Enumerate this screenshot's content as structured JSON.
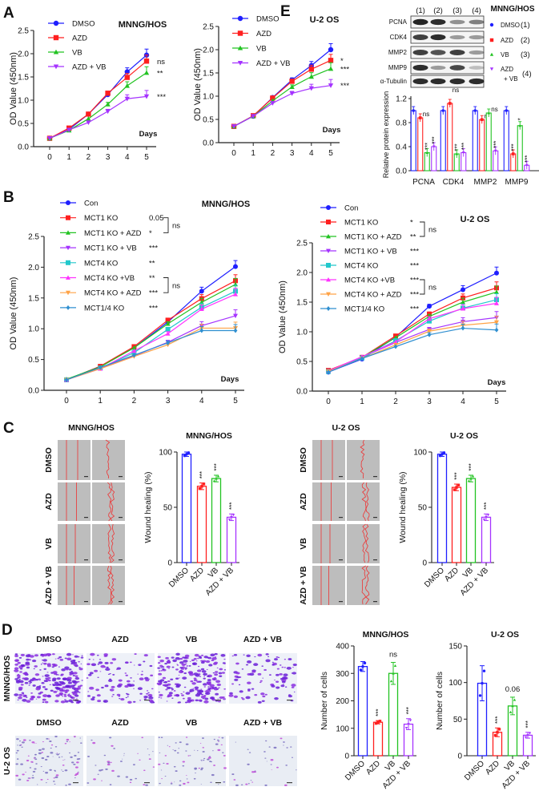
{
  "panels": [
    "A",
    "B",
    "C",
    "D",
    "E"
  ],
  "colors": {
    "blue": "#1f1fff",
    "red": "#ff1f1f",
    "green": "#22c322",
    "purple": "#a533ff",
    "cyan": "#22c8cc",
    "magenta": "#ff33ff",
    "orange": "#ffa347",
    "steel": "#2f8fd0",
    "axis": "#222222"
  },
  "chart_data": [
    {
      "id": "A1",
      "type": "line",
      "title": "MNNG/HOS",
      "xlabel": "Days",
      "ylabel": "OD Value (450nm)",
      "x": [
        0,
        1,
        2,
        3,
        4,
        5
      ],
      "xticks": [
        "0",
        "1",
        "2",
        "3",
        "4",
        "5"
      ],
      "ylim": [
        0,
        2.5
      ],
      "yticks": [
        "0.0",
        "0.5",
        "1.0",
        "1.5",
        "2.0",
        "2.5"
      ],
      "series": [
        {
          "name": "DMSO",
          "color": "#1f1fff",
          "marker": "circle",
          "values": [
            0.18,
            0.37,
            0.7,
            1.12,
            1.61,
            1.97
          ],
          "sig": ""
        },
        {
          "name": "AZD",
          "color": "#ff1f1f",
          "marker": "square",
          "values": [
            0.18,
            0.4,
            0.7,
            1.15,
            1.49,
            1.84
          ],
          "sig": "ns"
        },
        {
          "name": "VB",
          "color": "#22c322",
          "marker": "triangle",
          "values": [
            0.18,
            0.35,
            0.6,
            0.91,
            1.31,
            1.59
          ],
          "sig": "**"
        },
        {
          "name": "AZD + VB",
          "color": "#a533ff",
          "marker": "triangle-down",
          "values": [
            0.18,
            0.36,
            0.52,
            0.76,
            1.03,
            1.08
          ],
          "sig": "***"
        }
      ]
    },
    {
      "id": "A2",
      "type": "line",
      "title": "U-2 OS",
      "xlabel": "Days",
      "ylabel": "OD Value (450nm)",
      "x": [
        0,
        1,
        2,
        3,
        4,
        5
      ],
      "xticks": [
        "0",
        "1",
        "2",
        "3",
        "4",
        "5"
      ],
      "ylim": [
        0,
        2.5
      ],
      "yticks": [
        "0.0",
        "0.5",
        "1.0",
        "1.5",
        "2.0",
        "2.5"
      ],
      "series": [
        {
          "name": "DMSO",
          "color": "#1f1fff",
          "marker": "circle",
          "values": [
            0.35,
            0.57,
            0.97,
            1.35,
            1.66,
            2.0
          ],
          "sig": ""
        },
        {
          "name": "AZD",
          "color": "#ff1f1f",
          "marker": "square",
          "values": [
            0.35,
            0.58,
            0.96,
            1.32,
            1.58,
            1.77
          ],
          "sig": "*"
        },
        {
          "name": "VB",
          "color": "#22c322",
          "marker": "triangle",
          "values": [
            0.35,
            0.57,
            0.9,
            1.2,
            1.42,
            1.59
          ],
          "sig": "***"
        },
        {
          "name": "AZD + VB",
          "color": "#a533ff",
          "marker": "triangle-down",
          "values": [
            0.35,
            0.57,
            0.85,
            1.06,
            1.17,
            1.23
          ],
          "sig": "***"
        }
      ]
    },
    {
      "id": "B1",
      "type": "line",
      "title": "MNNG/HOS",
      "xlabel": "Days",
      "ylabel": "OD Value (450nm)",
      "x": [
        0,
        1,
        2,
        3,
        4,
        5
      ],
      "xticks": [
        "0",
        "1",
        "2",
        "3",
        "4",
        "5"
      ],
      "ylim": [
        0,
        2.5
      ],
      "yticks": [
        "0.0",
        "0.5",
        "1.0",
        "1.5",
        "2.0",
        "2.5"
      ],
      "series": [
        {
          "name": "Con",
          "color": "#1f1fff",
          "marker": "circle",
          "values": [
            0.17,
            0.39,
            0.69,
            1.11,
            1.61,
            2.01
          ],
          "sig": ""
        },
        {
          "name": "MCT1 KO",
          "color": "#ff1f1f",
          "marker": "square",
          "values": [
            0.17,
            0.39,
            0.71,
            1.14,
            1.49,
            1.78
          ],
          "sig": "0.05"
        },
        {
          "name": "MCT1 KO + AZD",
          "color": "#22c322",
          "marker": "triangle",
          "values": [
            0.18,
            0.38,
            0.69,
            1.08,
            1.43,
            1.72
          ],
          "sig": "*"
        },
        {
          "name": "MCT1 KO + VB",
          "color": "#a533ff",
          "marker": "triangle-down",
          "values": [
            0.17,
            0.36,
            0.56,
            0.78,
            1.05,
            1.21
          ],
          "sig": "***"
        },
        {
          "name": "MCT4 KO",
          "color": "#22c8cc",
          "marker": "square",
          "values": [
            0.17,
            0.36,
            0.61,
            0.99,
            1.35,
            1.61
          ],
          "sig": "**"
        },
        {
          "name": "MCT4 KO +VB",
          "color": "#ff33ff",
          "marker": "triangle",
          "values": [
            0.17,
            0.35,
            0.64,
            0.92,
            1.32,
            1.56
          ],
          "sig": "**"
        },
        {
          "name": "MCT4 KO + AZD",
          "color": "#ffa347",
          "marker": "triangle-down",
          "values": [
            0.17,
            0.35,
            0.55,
            0.74,
            1.01,
            1.01
          ],
          "sig": "***"
        },
        {
          "name": "MCT1/4 KO",
          "color": "#2f8fd0",
          "marker": "diamond",
          "values": [
            0.17,
            0.37,
            0.57,
            0.77,
            0.97,
            0.97
          ],
          "sig": "***"
        }
      ],
      "brackets": [
        {
          "rows": [
            1,
            2
          ],
          "label": "ns"
        },
        {
          "rows": [
            5,
            6
          ],
          "label": "ns"
        }
      ]
    },
    {
      "id": "B2",
      "type": "line",
      "title": "U-2 OS",
      "xlabel": "Days",
      "ylabel": "OD Value (450nm)",
      "x": [
        0,
        1,
        2,
        3,
        4,
        5
      ],
      "xticks": [
        "0",
        "1",
        "2",
        "3",
        "4",
        "5"
      ],
      "ylim": [
        0,
        2.5
      ],
      "yticks": [
        "0.0",
        "0.5",
        "1.0",
        "1.5",
        "2.0",
        "2.5"
      ],
      "series": [
        {
          "name": "Con",
          "color": "#1f1fff",
          "marker": "circle",
          "values": [
            0.32,
            0.54,
            0.91,
            1.43,
            1.71,
            1.99
          ],
          "sig": ""
        },
        {
          "name": "MCT1 KO",
          "color": "#ff1f1f",
          "marker": "square",
          "values": [
            0.35,
            0.57,
            0.93,
            1.3,
            1.57,
            1.74
          ],
          "sig": "*"
        },
        {
          "name": "MCT1 KO + AZD",
          "color": "#22c322",
          "marker": "triangle",
          "values": [
            0.34,
            0.57,
            0.9,
            1.26,
            1.5,
            1.67
          ],
          "sig": "**"
        },
        {
          "name": "MCT1 KO + VB",
          "color": "#a533ff",
          "marker": "triangle-down",
          "values": [
            0.34,
            0.57,
            0.82,
            1.04,
            1.17,
            1.24
          ],
          "sig": "***"
        },
        {
          "name": "MCT4 KO",
          "color": "#22c8cc",
          "marker": "square",
          "values": [
            0.33,
            0.56,
            0.85,
            1.18,
            1.4,
            1.54
          ],
          "sig": "***"
        },
        {
          "name": "MCT4 KO +VB",
          "color": "#ff33ff",
          "marker": "triangle",
          "values": [
            0.34,
            0.58,
            0.83,
            1.22,
            1.39,
            1.48
          ],
          "sig": "***"
        },
        {
          "name": "MCT4 KO + AZD",
          "color": "#ffa347",
          "marker": "triangle-down",
          "values": [
            0.33,
            0.55,
            0.78,
            1.01,
            1.11,
            1.16
          ],
          "sig": "***"
        },
        {
          "name": "MCT1/4 KO",
          "color": "#2f8fd0",
          "marker": "diamond",
          "values": [
            0.32,
            0.55,
            0.75,
            0.95,
            1.06,
            1.03
          ],
          "sig": "***"
        }
      ],
      "brackets": [
        {
          "rows": [
            1,
            2
          ],
          "label": "ns"
        },
        {
          "rows": [
            5,
            6
          ],
          "label": "ns"
        }
      ]
    },
    {
      "id": "E",
      "type": "bar",
      "title": "MNNG/HOS",
      "ylabel": "Relative protein expression",
      "ylim": [
        0,
        1.2
      ],
      "yticks": [
        "0.0",
        "0.4",
        "0.8",
        "1.2"
      ],
      "categories": [
        "PCNA",
        "CDK4",
        "MMP2",
        "MMP9"
      ],
      "series": [
        {
          "name": "DMSO",
          "index": "(1)",
          "color": "#1f1fff",
          "values": [
            1.0,
            1.0,
            1.0,
            1.0
          ],
          "sig": [
            "",
            "",
            "",
            ""
          ]
        },
        {
          "name": "AZD",
          "index": "(2)",
          "color": "#ff1f1f",
          "values": [
            0.88,
            1.12,
            0.85,
            0.28
          ],
          "sig": [
            "ns",
            "ns",
            "ns",
            "***"
          ]
        },
        {
          "name": "VB",
          "index": "(3)",
          "color": "#22c322",
          "values": [
            0.3,
            0.28,
            0.96,
            0.75
          ],
          "sig": [
            "***",
            "***",
            "ns",
            "*"
          ]
        },
        {
          "name": "AZD + VB",
          "index": "(4)",
          "color": "#a533ff",
          "values": [
            0.4,
            0.3,
            0.33,
            0.09
          ],
          "sig": [
            "***",
            "***",
            "***",
            "***"
          ]
        }
      ]
    },
    {
      "id": "C1",
      "type": "bar",
      "title": "MNNG/HOS",
      "ylabel": "Wound healing (%)",
      "ylim": [
        0,
        100
      ],
      "yticks": [
        "0",
        "50",
        "100"
      ],
      "categories": [
        "DMSO",
        "AZD",
        "VB",
        "AZD + VB"
      ],
      "colors": [
        "#1f1fff",
        "#ff1f1f",
        "#22c322",
        "#a533ff"
      ],
      "values": [
        98,
        69,
        76,
        41
      ],
      "errors": [
        2,
        3,
        3,
        3
      ],
      "sig": [
        "",
        "***",
        "***",
        "***"
      ]
    },
    {
      "id": "C2",
      "type": "bar",
      "title": "U-2 OS",
      "ylabel": "Wound healing (%)",
      "ylim": [
        0,
        100
      ],
      "yticks": [
        "0",
        "50",
        "100"
      ],
      "categories": [
        "DMSO",
        "AZD",
        "VB",
        "AZD + VB"
      ],
      "colors": [
        "#1f1fff",
        "#ff1f1f",
        "#22c322",
        "#a533ff"
      ],
      "values": [
        98,
        68,
        76,
        41
      ],
      "errors": [
        2,
        3,
        3,
        3
      ],
      "sig": [
        "",
        "***",
        "***",
        "***"
      ]
    },
    {
      "id": "D1",
      "type": "bar",
      "title": "MNNG/HOS",
      "ylabel": "Number of cells",
      "ylim": [
        0,
        400
      ],
      "yticks": [
        "0",
        "100",
        "200",
        "300",
        "400"
      ],
      "categories": [
        "DMSO",
        "AZD",
        "VB",
        "AZD + VB"
      ],
      "colors": [
        "#1f1fff",
        "#ff1f1f",
        "#22c322",
        "#a533ff"
      ],
      "values": [
        325,
        122,
        300,
        115
      ],
      "errors": [
        18,
        6,
        40,
        20
      ],
      "sig": [
        "",
        "***",
        "ns",
        "***"
      ]
    },
    {
      "id": "D2",
      "type": "bar",
      "title": "U-2 OS",
      "ylabel": "Number of cells",
      "ylim": [
        0,
        150
      ],
      "yticks": [
        "0",
        "50",
        "100",
        "150"
      ],
      "categories": [
        "DMSO",
        "AZD",
        "VB",
        "AZD + VB"
      ],
      "colors": [
        "#1f1fff",
        "#ff1f1f",
        "#22c322",
        "#a533ff"
      ],
      "values": [
        99,
        32,
        68,
        28
      ],
      "errors": [
        24,
        6,
        12,
        4
      ],
      "sig": [
        "",
        "***",
        "0.06",
        "***"
      ]
    }
  ],
  "blot": {
    "lanes": [
      "(1)",
      "(2)",
      "(3)",
      "(4)"
    ],
    "rows": [
      {
        "label": "PCNA",
        "intensity": [
          0.95,
          0.9,
          0.35,
          0.45
        ]
      },
      {
        "label": "CDK4",
        "intensity": [
          0.8,
          0.9,
          0.3,
          0.3
        ]
      },
      {
        "label": "MMP2",
        "intensity": [
          0.8,
          0.7,
          0.8,
          0.3
        ]
      },
      {
        "label": "MMP9",
        "intensity": [
          0.9,
          0.3,
          0.75,
          0.1
        ]
      },
      {
        "label": "α-Tubulin",
        "intensity": [
          0.9,
          0.9,
          0.9,
          0.9
        ]
      }
    ]
  },
  "wound": {
    "title_left": "MNNG/HOS",
    "title_right": "U-2 OS",
    "rows": [
      "DMSO",
      "AZD",
      "VB",
      "AZD + VB"
    ]
  },
  "transwell": {
    "columns": [
      "DMSO",
      "AZD",
      "VB",
      "AZD + VB"
    ],
    "rows": [
      {
        "label": "MNNG/HOS",
        "density": [
          1.0,
          0.4,
          0.9,
          0.35
        ]
      },
      {
        "label": "U-2 OS",
        "density": [
          0.9,
          0.35,
          0.65,
          0.3
        ]
      }
    ]
  }
}
